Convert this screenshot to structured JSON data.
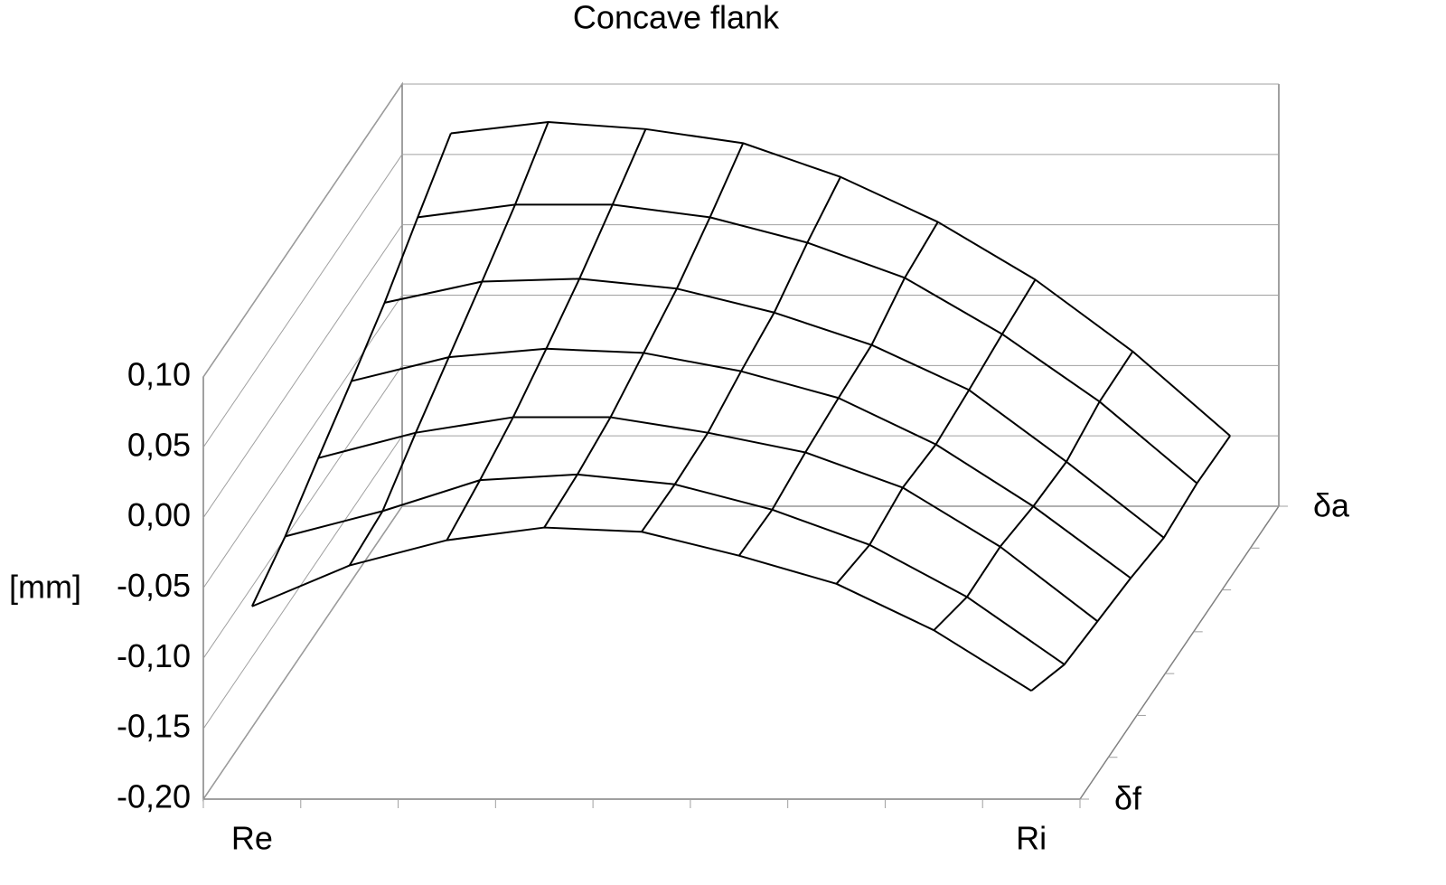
{
  "chart_data": {
    "type": "surface",
    "title": "Concave flank",
    "y_label": "[mm]",
    "categories": [
      "Re",
      null,
      null,
      null,
      null,
      null,
      null,
      null,
      "Ri"
    ],
    "depth_categories": [
      "δf",
      null,
      null,
      null,
      null,
      null,
      "δa"
    ],
    "color": "#000000",
    "ylim": [
      -0.2,
      0.1
    ],
    "yticks": [
      {
        "value": -0.2,
        "label": "-0,20"
      },
      {
        "value": -0.15,
        "label": "-0,15"
      },
      {
        "value": -0.1,
        "label": "-0,10"
      },
      {
        "value": -0.05,
        "label": "-0,05"
      },
      {
        "value": 0,
        "label": "0,00"
      },
      {
        "value": 0.05,
        "label": "0,05"
      },
      {
        "value": 0.1,
        "label": "0,10"
      }
    ],
    "grid": true,
    "series": [
      {
        "values": [
          -0.063,
          -0.034,
          -0.016,
          -0.007,
          -0.01,
          -0.027,
          -0.047,
          -0.08,
          -0.123
        ]
      },
      {
        "values": [
          -0.048,
          -0.03,
          -0.008,
          -0.004,
          -0.011,
          -0.029,
          -0.054,
          -0.091,
          -0.139
        ]
      },
      {
        "values": [
          -0.027,
          -0.009,
          0.002,
          0.002,
          -0.009,
          -0.023,
          -0.048,
          -0.09,
          -0.143
        ]
      },
      {
        "values": [
          -0.007,
          0.01,
          0.016,
          0.013,
          0.0,
          -0.019,
          -0.052,
          -0.096,
          -0.147
        ]
      },
      {
        "values": [
          0.014,
          0.029,
          0.031,
          0.024,
          0.007,
          -0.016,
          -0.048,
          -0.099,
          -0.153
        ]
      },
      {
        "values": [
          0.04,
          0.049,
          0.049,
          0.04,
          0.022,
          -0.003,
          -0.043,
          -0.091,
          -0.149
        ]
      },
      {
        "values": [
          0.065,
          0.073,
          0.068,
          0.058,
          0.034,
          0.002,
          -0.039,
          -0.09,
          -0.15
        ]
      }
    ]
  }
}
